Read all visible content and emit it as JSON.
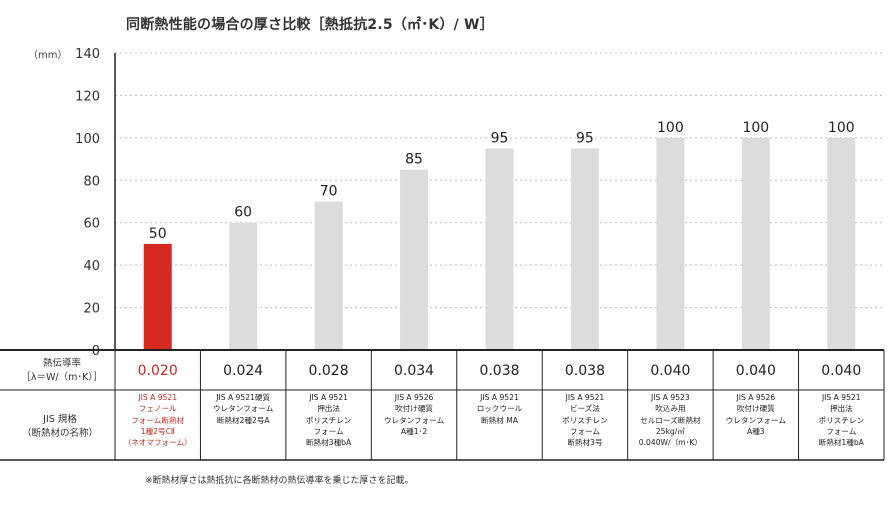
{
  "title": "同断熱性能の場合の厚さ比較［熱抵抗2.5（㎡･K）/ W］",
  "unit_label": "（mm）",
  "row_labels": {
    "conductivity_line1": "熱伝導率",
    "conductivity_line2": "［λ＝W/（m･K）］",
    "jis_line1": "JIS 規格",
    "jis_line2": "（断熱材の名称）"
  },
  "footnote": "※断熱材厚さは熱抵抗に各断熱材の熱伝導率を乗じた厚さを記載。",
  "colors": {
    "highlight": "#d3291f",
    "bar": "#dcdcdc",
    "grid": "#bdbdbd",
    "axis": "#222222"
  },
  "chart_data": {
    "type": "bar",
    "ylim": [
      0,
      140
    ],
    "yticks": [
      0,
      20,
      40,
      60,
      80,
      100,
      120,
      140
    ],
    "grid": true,
    "values": [
      50,
      60,
      70,
      85,
      95,
      95,
      100,
      100,
      100
    ],
    "value_labels": [
      "50",
      "60",
      "70",
      "85",
      "95",
      "95",
      "100",
      "100",
      "100"
    ],
    "highlight_index": 0,
    "conductivity": [
      "0.020",
      "0.024",
      "0.028",
      "0.034",
      "0.038",
      "0.038",
      "0.040",
      "0.040",
      "0.040"
    ],
    "categories": [
      [
        "JIS A 9521",
        "フェノール",
        "フォーム断熱材",
        "1種2号CⅡ",
        "（ネオマフォーム）"
      ],
      [
        "JIS A 9521硬質",
        "ウレタンフォーム",
        "断熱材2種2号A"
      ],
      [
        "JIS A 9521",
        "押出法",
        "ポリスチレン",
        "フォーム",
        "断熱材3種bA"
      ],
      [
        "JIS A 9526",
        "吹付け硬質",
        "ウレタンフォーム",
        "A種1･2"
      ],
      [
        "JIS A 9521",
        "ロックウール",
        "断熱材 MA"
      ],
      [
        "JIS A 9521",
        "ビーズ法",
        "ポリスチレン",
        "フォーム",
        "断熱材3号"
      ],
      [
        "JIS A 9523",
        "吹込み用",
        "セルローズ断熱材",
        "25kg/㎥",
        "0.040W/（m･K）"
      ],
      [
        "JIS A 9526",
        "吹付け硬質",
        "ウレタンフォーム",
        "A種3"
      ],
      [
        "JIS A 9521",
        "押出法",
        "ポリスチレン",
        "フォーム",
        "断熱材1種bA"
      ]
    ]
  }
}
